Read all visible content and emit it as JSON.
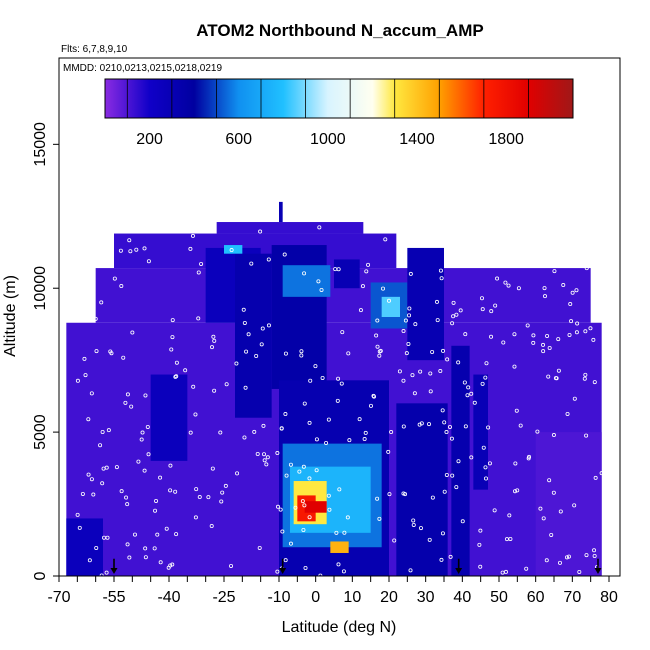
{
  "chart_data": {
    "type": "heatmap",
    "title": "ATOM2 Northbound N_accum_AMP",
    "annotations": [
      "Flts: 6,7,8,9,10",
      "MMDD: 0210,0213,0215,0218,0219"
    ],
    "xlabel": "Latitude (deg N)",
    "ylabel": "Altitude (m)",
    "xlim": [
      -70,
      83
    ],
    "ylim": [
      0,
      18000
    ],
    "x_ticks": [
      -70,
      -55,
      -40,
      -25,
      -10,
      0,
      10,
      20,
      30,
      40,
      50,
      60,
      70,
      80
    ],
    "x_tick_labels": [
      "-70",
      "-55",
      "-40",
      "-25",
      "-10",
      "0",
      "10",
      "20",
      "30",
      "40",
      "50",
      "60",
      "70",
      "80"
    ],
    "x_minor_ticks": [
      -65,
      -60,
      -50,
      -45,
      -35,
      -30,
      -20,
      -15,
      -5,
      5,
      15,
      25,
      35,
      45,
      55,
      65,
      75
    ],
    "y_ticks": [
      0,
      5000,
      10000,
      15000
    ],
    "y_tick_labels": [
      "0",
      "5000",
      "10000",
      "15000"
    ],
    "colorbar": {
      "range": [
        0,
        2100
      ],
      "tick_values": [
        200,
        600,
        1000,
        1400,
        1800
      ],
      "tick_labels": [
        "200",
        "600",
        "1000",
        "1400",
        "1800"
      ],
      "stops": [
        [
          0,
          "#8a2be2"
        ],
        [
          200,
          "#1000c8"
        ],
        [
          400,
          "#0000a0"
        ],
        [
          600,
          "#1090f0"
        ],
        [
          800,
          "#20c0ff"
        ],
        [
          1000,
          "#d8f4ff"
        ],
        [
          1200,
          "#fffff0"
        ],
        [
          1300,
          "#ffe840"
        ],
        [
          1500,
          "#ffa000"
        ],
        [
          1700,
          "#ff2000"
        ],
        [
          1900,
          "#e00000"
        ],
        [
          2100,
          "#a01818"
        ]
      ]
    },
    "regions": [
      {
        "x": [
          -68,
          78
        ],
        "y": [
          0,
          8800
        ],
        "value": 120
      },
      {
        "x": [
          -60,
          75
        ],
        "y": [
          8800,
          10700
        ],
        "value": 120
      },
      {
        "x": [
          -55,
          22
        ],
        "y": [
          10700,
          11900
        ],
        "value": 140
      },
      {
        "x": [
          -27,
          13
        ],
        "y": [
          11900,
          12300
        ],
        "value": 140
      },
      {
        "x": [
          -10,
          -9
        ],
        "y": [
          12300,
          13000
        ],
        "value": 300
      },
      {
        "x": [
          -30,
          -15
        ],
        "y": [
          8800,
          11400
        ],
        "value": 260
      },
      {
        "x": [
          -22,
          -12
        ],
        "y": [
          5500,
          11200
        ],
        "value": 330
      },
      {
        "x": [
          -12,
          3
        ],
        "y": [
          6500,
          11500
        ],
        "value": 360
      },
      {
        "x": [
          -9,
          4
        ],
        "y": [
          9700,
          10800
        ],
        "value": 560
      },
      {
        "x": [
          5,
          12
        ],
        "y": [
          10000,
          11000
        ],
        "value": 300
      },
      {
        "x": [
          15,
          25
        ],
        "y": [
          8600,
          10200
        ],
        "value": 520
      },
      {
        "x": [
          18,
          23
        ],
        "y": [
          9000,
          9700
        ],
        "value": 850
      },
      {
        "x": [
          25,
          35
        ],
        "y": [
          7500,
          11400
        ],
        "value": 310
      },
      {
        "x": [
          22,
          36
        ],
        "y": [
          0,
          6000
        ],
        "value": 340
      },
      {
        "x": [
          37,
          42
        ],
        "y": [
          0,
          8000
        ],
        "value": 330
      },
      {
        "x": [
          43,
          47
        ],
        "y": [
          3000,
          7000
        ],
        "value": 290
      },
      {
        "x": [
          -68,
          -58
        ],
        "y": [
          0,
          2000
        ],
        "value": 260
      },
      {
        "x": [
          -45,
          -35
        ],
        "y": [
          4000,
          7000
        ],
        "value": 260
      },
      {
        "x": [
          60,
          78
        ],
        "y": [
          0,
          5000
        ],
        "value": 100
      },
      {
        "x": [
          -10,
          20
        ],
        "y": [
          0,
          6800
        ],
        "value": 320
      },
      {
        "x": [
          -9,
          18
        ],
        "y": [
          1000,
          4600
        ],
        "value": 560
      },
      {
        "x": [
          -7,
          15
        ],
        "y": [
          1500,
          3800
        ],
        "value": 750
      },
      {
        "x": [
          -6,
          3
        ],
        "y": [
          1800,
          3300
        ],
        "value": 1300
      },
      {
        "x": [
          -5,
          0
        ],
        "y": [
          1900,
          2800
        ],
        "value": 1750
      },
      {
        "x": [
          -3,
          3
        ],
        "y": [
          2200,
          2600
        ],
        "value": 1900
      },
      {
        "x": [
          4,
          9
        ],
        "y": [
          800,
          1200
        ],
        "value": 1450
      },
      {
        "x": [
          -25,
          -20
        ],
        "y": [
          11200,
          11500
        ],
        "value": 800
      }
    ],
    "flight_markers_lat": [
      -55,
      -9,
      39,
      77
    ]
  }
}
